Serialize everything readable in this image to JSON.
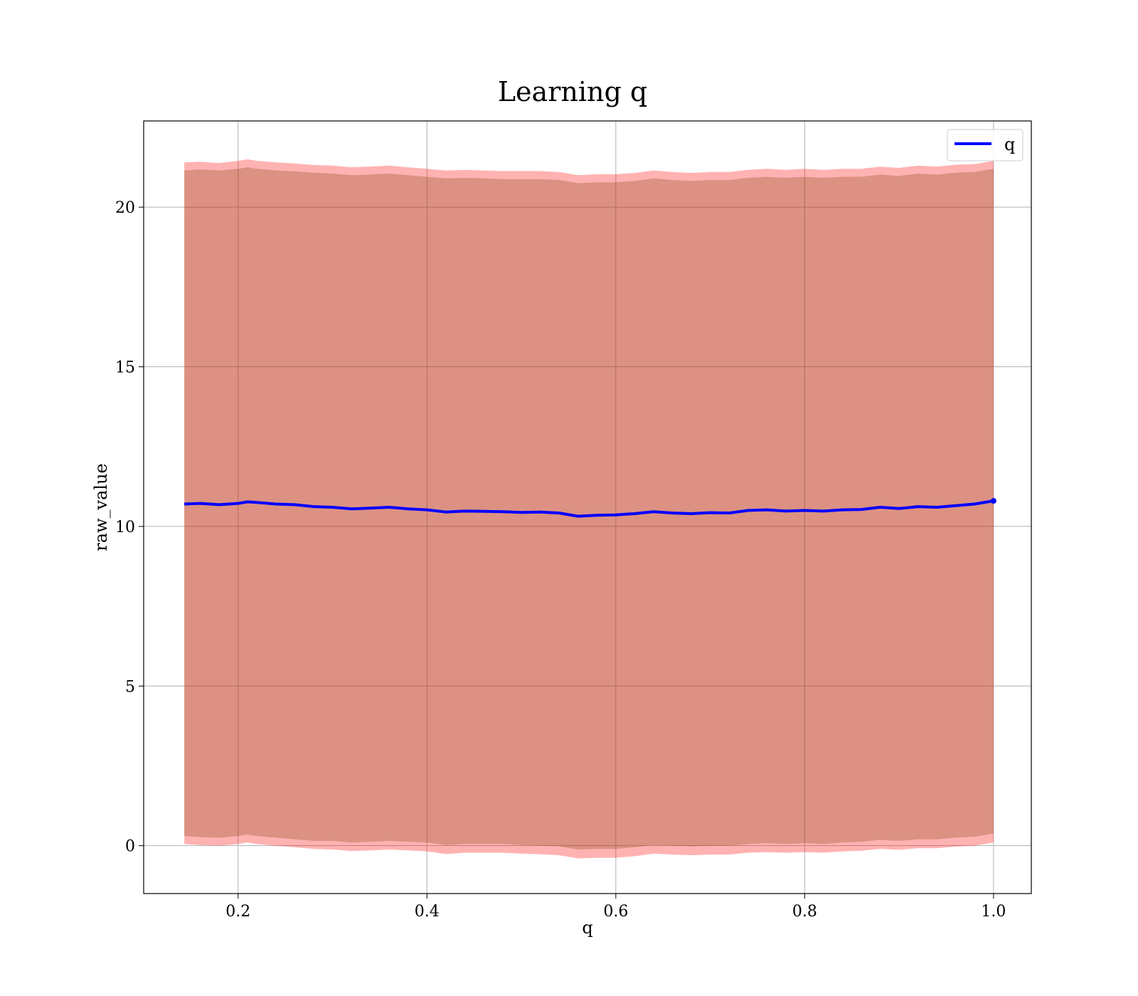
{
  "chart_data": {
    "type": "area",
    "title": "Learning q",
    "xlabel": "q",
    "ylabel": "raw_value",
    "xlim": [
      0.1,
      1.04
    ],
    "ylim": [
      -1.5,
      22.7
    ],
    "grid": true,
    "legend": {
      "position": "top-right",
      "entries": [
        "q"
      ]
    },
    "x_ticks": [
      0.2,
      0.4,
      0.6,
      0.8,
      1.0
    ],
    "x_tick_labels": [
      "0.2",
      "0.4",
      "0.6",
      "0.8",
      "1.0"
    ],
    "y_ticks": [
      0,
      5,
      10,
      15,
      20
    ],
    "y_tick_labels": [
      "0",
      "5",
      "10",
      "15",
      "20"
    ],
    "x": [
      0.143,
      0.16,
      0.18,
      0.2,
      0.21,
      0.22,
      0.24,
      0.26,
      0.28,
      0.3,
      0.32,
      0.34,
      0.36,
      0.38,
      0.4,
      0.42,
      0.44,
      0.46,
      0.48,
      0.5,
      0.52,
      0.54,
      0.56,
      0.58,
      0.6,
      0.62,
      0.64,
      0.66,
      0.68,
      0.7,
      0.72,
      0.74,
      0.76,
      0.78,
      0.8,
      0.82,
      0.84,
      0.86,
      0.88,
      0.9,
      0.92,
      0.94,
      0.96,
      0.98,
      1.0
    ],
    "series": [
      {
        "name": "q",
        "color": "#0000ff",
        "values": [
          10.7,
          10.72,
          10.68,
          10.72,
          10.77,
          10.75,
          10.7,
          10.68,
          10.62,
          10.6,
          10.55,
          10.57,
          10.6,
          10.55,
          10.52,
          10.45,
          10.48,
          10.47,
          10.46,
          10.44,
          10.45,
          10.42,
          10.32,
          10.35,
          10.36,
          10.4,
          10.46,
          10.42,
          10.4,
          10.43,
          10.42,
          10.5,
          10.52,
          10.48,
          10.5,
          10.48,
          10.52,
          10.53,
          10.6,
          10.56,
          10.62,
          10.6,
          10.65,
          10.7,
          10.8
        ]
      }
    ],
    "bands": [
      {
        "sigma": 1,
        "color": "#8b4513",
        "lower": [
          0.3,
          0.27,
          0.25,
          0.3,
          0.35,
          0.3,
          0.25,
          0.2,
          0.15,
          0.15,
          0.1,
          0.12,
          0.15,
          0.12,
          0.1,
          0.02,
          0.05,
          0.05,
          0.05,
          0.02,
          0.0,
          -0.02,
          -0.12,
          -0.1,
          -0.1,
          -0.05,
          0.02,
          0.0,
          -0.02,
          0.0,
          0.0,
          0.05,
          0.08,
          0.05,
          0.08,
          0.05,
          0.1,
          0.12,
          0.18,
          0.15,
          0.2,
          0.2,
          0.25,
          0.28,
          0.38
        ],
        "upper": [
          21.15,
          21.18,
          21.15,
          21.2,
          21.25,
          21.2,
          21.15,
          21.12,
          21.08,
          21.05,
          21.0,
          21.02,
          21.05,
          21.0,
          20.95,
          20.9,
          20.92,
          20.9,
          20.88,
          20.88,
          20.88,
          20.85,
          20.75,
          20.78,
          20.78,
          20.82,
          20.9,
          20.85,
          20.82,
          20.85,
          20.85,
          20.92,
          20.95,
          20.92,
          20.95,
          20.92,
          20.95,
          20.95,
          21.02,
          20.98,
          21.05,
          21.02,
          21.08,
          21.1,
          21.2
        ]
      },
      {
        "sigma": 2,
        "color": "#ff0000",
        "lower": [
          0.05,
          0.02,
          0.0,
          0.05,
          0.1,
          0.05,
          0.0,
          -0.05,
          -0.1,
          -0.12,
          -0.17,
          -0.15,
          -0.12,
          -0.15,
          -0.18,
          -0.26,
          -0.22,
          -0.22,
          -0.22,
          -0.25,
          -0.27,
          -0.3,
          -0.4,
          -0.38,
          -0.38,
          -0.33,
          -0.25,
          -0.28,
          -0.3,
          -0.28,
          -0.28,
          -0.22,
          -0.2,
          -0.22,
          -0.2,
          -0.22,
          -0.18,
          -0.16,
          -0.1,
          -0.13,
          -0.08,
          -0.08,
          -0.03,
          0.0,
          0.1
        ],
        "upper": [
          21.4,
          21.42,
          21.38,
          21.45,
          21.5,
          21.45,
          21.4,
          21.37,
          21.32,
          21.3,
          21.25,
          21.27,
          21.3,
          21.25,
          21.2,
          21.15,
          21.17,
          21.15,
          21.13,
          21.13,
          21.13,
          21.1,
          21.0,
          21.03,
          21.03,
          21.07,
          21.15,
          21.1,
          21.07,
          21.1,
          21.1,
          21.17,
          21.2,
          21.17,
          21.2,
          21.17,
          21.2,
          21.2,
          21.27,
          21.23,
          21.3,
          21.27,
          21.33,
          21.35,
          21.45
        ]
      }
    ]
  }
}
